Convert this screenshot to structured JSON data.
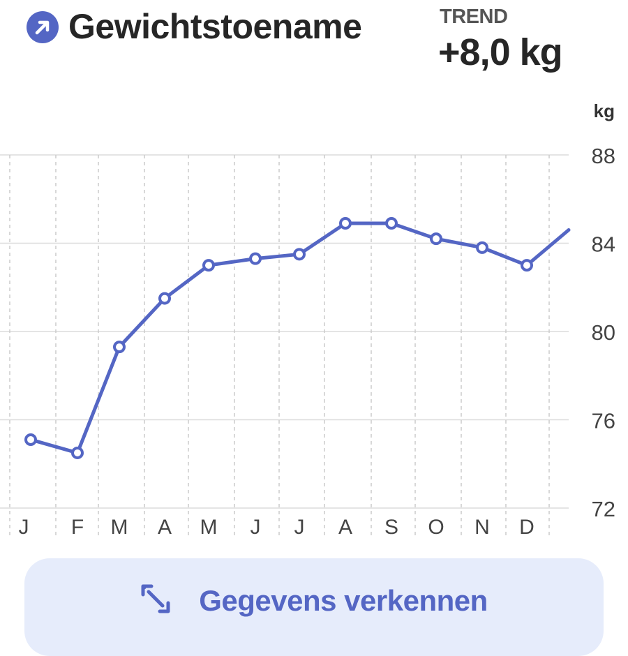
{
  "header": {
    "title": "Gewichtstoename",
    "icon": "trend-up-arrow-icon",
    "trend_label": "TREND",
    "trend_value": "+8,0 kg"
  },
  "colors": {
    "accent": "#5466c4",
    "button_bg": "#e6ecfb",
    "grid": "#dcdcdc"
  },
  "chart_data": {
    "type": "line",
    "unit_label": "kg",
    "categories": [
      "J",
      "F",
      "M",
      "A",
      "M",
      "J",
      "J",
      "A",
      "S",
      "O",
      "N",
      "D"
    ],
    "y_ticks": [
      "88",
      "84",
      "80",
      "76",
      "72"
    ],
    "y_tick_values": [
      88,
      84,
      80,
      76,
      72
    ],
    "ylim": [
      72,
      88
    ],
    "grid": true,
    "series": [
      {
        "values": [
          75.1,
          74.5,
          79.3,
          81.5,
          83.0,
          83.3,
          83.5,
          84.9,
          84.9,
          84.2,
          83.8,
          83.0
        ],
        "trailing_value": 84.6
      }
    ]
  },
  "button": {
    "label": "Gegevens verkennen",
    "icon": "expand-arrows-icon"
  }
}
